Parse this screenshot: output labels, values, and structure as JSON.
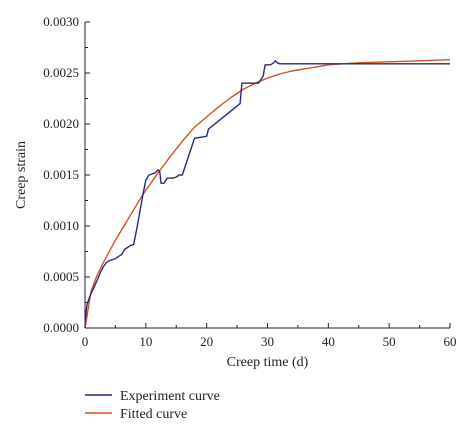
{
  "chart_data": {
    "type": "line",
    "xlabel": "Creep time (d)",
    "ylabel": "Creep strain",
    "xlim": [
      0,
      60
    ],
    "ylim": [
      0,
      0.003
    ],
    "x_ticks": [
      "0",
      "10",
      "20",
      "30",
      "40",
      "50",
      "60"
    ],
    "y_ticks": [
      "0.0000",
      "0.0005",
      "0.0010",
      "0.0015",
      "0.0020",
      "0.0025",
      "0.0030"
    ],
    "grid": false,
    "legend_position": "bottom-left",
    "series": [
      {
        "name": "Experiment curve",
        "color": "#2a2a7a",
        "points": [
          [
            0,
            0
          ],
          [
            0.1,
            0.0001
          ],
          [
            0.3,
            0.00022
          ],
          [
            0.6,
            0.00028
          ],
          [
            1,
            0.00034
          ],
          [
            1.5,
            0.0004
          ],
          [
            2,
            0.00047
          ],
          [
            2.5,
            0.00054
          ],
          [
            3,
            0.0006
          ],
          [
            3.5,
            0.00064
          ],
          [
            4,
            0.00066
          ],
          [
            5,
            0.00068
          ],
          [
            6,
            0.00072
          ],
          [
            6.5,
            0.00077
          ],
          [
            7.5,
            0.00081
          ],
          [
            8,
            0.00082
          ],
          [
            8.6,
            0.001
          ],
          [
            9.5,
            0.0013
          ],
          [
            10,
            0.00145
          ],
          [
            10.5,
            0.0015
          ],
          [
            11,
            0.00151
          ],
          [
            11.5,
            0.00152
          ],
          [
            12,
            0.00155
          ],
          [
            12.3,
            0.00153
          ],
          [
            12.5,
            0.00142
          ],
          [
            13,
            0.00142
          ],
          [
            13.5,
            0.00147
          ],
          [
            14.5,
            0.00147
          ],
          [
            15,
            0.00148
          ],
          [
            15.5,
            0.0015
          ],
          [
            16,
            0.0015
          ],
          [
            17,
            0.00168
          ],
          [
            18,
            0.00186
          ],
          [
            19,
            0.00187
          ],
          [
            20,
            0.00188
          ],
          [
            20.3,
            0.00195
          ],
          [
            25.5,
            0.0022
          ],
          [
            25.8,
            0.0024
          ],
          [
            28.5,
            0.0024
          ],
          [
            29.3,
            0.00247
          ],
          [
            29.6,
            0.00258
          ],
          [
            30.5,
            0.00258
          ],
          [
            31,
            0.0026
          ],
          [
            31.3,
            0.00262
          ],
          [
            31.6,
            0.0026
          ],
          [
            32,
            0.00259
          ],
          [
            40,
            0.00259
          ],
          [
            50,
            0.00259
          ],
          [
            60,
            0.00259
          ]
        ]
      },
      {
        "name": "Fitted curve",
        "color": "#cc5522",
        "points": [
          [
            0,
            0
          ],
          [
            1,
            0.00036
          ],
          [
            2,
            0.00052
          ],
          [
            3,
            0.00064
          ],
          [
            4,
            0.00075
          ],
          [
            5,
            0.00086
          ],
          [
            6,
            0.00096
          ],
          [
            7,
            0.00106
          ],
          [
            8,
            0.00116
          ],
          [
            9,
            0.00126
          ],
          [
            10,
            0.00135
          ],
          [
            12,
            0.00152
          ],
          [
            14,
            0.00168
          ],
          [
            16,
            0.00183
          ],
          [
            18,
            0.00197
          ],
          [
            20,
            0.00207
          ],
          [
            22,
            0.00217
          ],
          [
            24,
            0.00226
          ],
          [
            26,
            0.00234
          ],
          [
            28,
            0.0024
          ],
          [
            30,
            0.00245
          ],
          [
            32,
            0.00249
          ],
          [
            34,
            0.00252
          ],
          [
            36,
            0.00254
          ],
          [
            38,
            0.00256
          ],
          [
            40,
            0.00258
          ],
          [
            45,
            0.0026
          ],
          [
            50,
            0.00261
          ],
          [
            55,
            0.00262
          ],
          [
            60,
            0.00263
          ]
        ]
      }
    ]
  }
}
